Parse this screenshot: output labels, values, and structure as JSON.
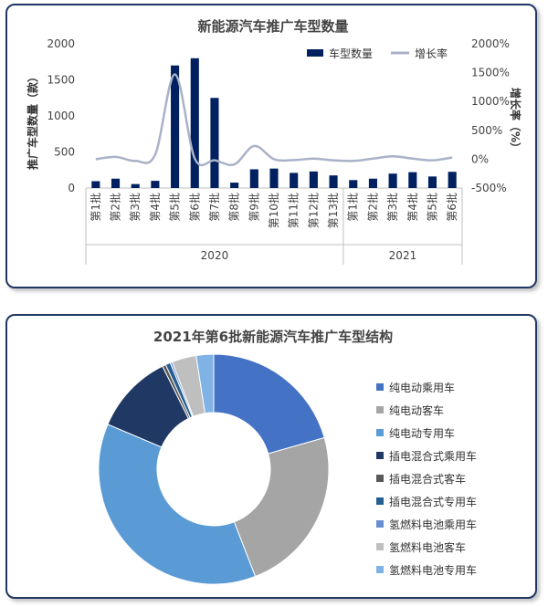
{
  "chart_data": [
    {
      "type": "bar",
      "title": "新能源汽车推广车型数量",
      "ylabel": "推广车型数量（款）",
      "y2label": "增长率（%）",
      "ylim": [
        0,
        2000
      ],
      "y2lim": [
        -500,
        2000
      ],
      "yticks": [
        "0",
        "500",
        "1000",
        "1500",
        "2000"
      ],
      "y2ticks": [
        "-500%",
        "0%",
        "500%",
        "1000%",
        "1500%",
        "2000%"
      ],
      "categories": [
        "第1批",
        "第2批",
        "第3批",
        "第4批",
        "第5批",
        "第6批",
        "第7批",
        "第8批",
        "第9批",
        "第10批",
        "第11批",
        "第12批",
        "第13批",
        "第1批",
        "第2批",
        "第3批",
        "第4批",
        "第5批",
        "第6批"
      ],
      "groups": [
        {
          "label": "2020",
          "count": 13
        },
        {
          "label": "2021",
          "count": 6
        }
      ],
      "series": [
        {
          "name": "车型数量",
          "kind": "bar",
          "color": "#002060",
          "values": [
            95,
            130,
            55,
            100,
            1700,
            1800,
            1250,
            75,
            260,
            270,
            210,
            230,
            175,
            110,
            130,
            200,
            220,
            160,
            225
          ]
        },
        {
          "name": "增长率",
          "kind": "line",
          "axis": "right",
          "color": "#aab2c8",
          "values": [
            0,
            40,
            -30,
            80,
            1470,
            10,
            -20,
            -90,
            230,
            0,
            -15,
            10,
            -20,
            -30,
            10,
            50,
            10,
            -20,
            30
          ]
        }
      ],
      "legend": "top-right",
      "grid": false
    },
    {
      "type": "pie",
      "title": "2021年第6批新能源汽车推广车型结构",
      "donut": true,
      "legend": "right",
      "labels": [
        "纯电动乘用车",
        "纯电动客车",
        "纯电动专用车",
        "插电混合式乘用车",
        "插电混合式客车",
        "插电混合式专用车",
        "氢燃料电池乘用车",
        "氢燃料电池客车",
        "氢燃料电池专用车"
      ],
      "values": [
        21.0,
        24.0,
        38.0,
        11.5,
        0.5,
        0.7,
        0.3,
        3.5,
        2.5
      ],
      "colors": [
        "#4472c4",
        "#a5a5a5",
        "#5b9bd5",
        "#203864",
        "#595959",
        "#255e91",
        "#698ed0",
        "#bfbfbf",
        "#7fb3e5"
      ]
    }
  ]
}
